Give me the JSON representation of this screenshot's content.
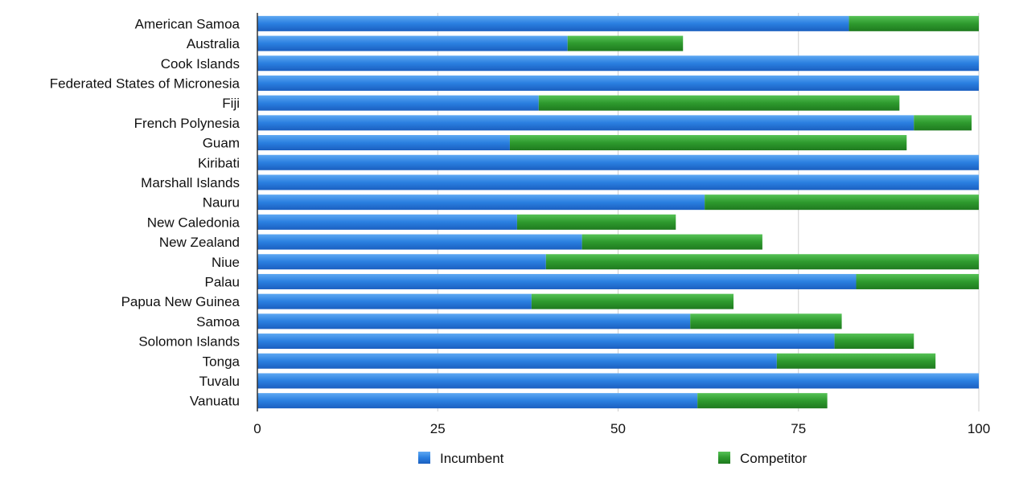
{
  "chart_data": {
    "type": "bar",
    "orientation": "horizontal",
    "stacked": true,
    "categories": [
      "American Samoa",
      "Australia",
      "Cook Islands",
      "Federated States of Micronesia",
      "Fiji",
      "French Polynesia",
      "Guam",
      "Kiribati",
      "Marshall Islands",
      "Nauru",
      "New Caledonia",
      "New Zealand",
      "Niue",
      "Palau",
      "Papua New Guinea",
      "Samoa",
      "Solomon Islands",
      "Tonga",
      "Tuvalu",
      "Vanuatu"
    ],
    "series": [
      {
        "name": "Incumbent",
        "color": "#2a78d8",
        "values": [
          82,
          43,
          100,
          100,
          39,
          91,
          35,
          100,
          100,
          62,
          36,
          45,
          40,
          83,
          38,
          60,
          80,
          72,
          100,
          61
        ]
      },
      {
        "name": "Competitor",
        "color": "#2e9a2e",
        "values": [
          18,
          16,
          0,
          0,
          50,
          8,
          55,
          0,
          0,
          38,
          22,
          25,
          60,
          17,
          28,
          21,
          11,
          22,
          0,
          18
        ]
      }
    ],
    "x_ticks": [
      "0",
      "25",
      "50",
      "75",
      "100"
    ],
    "xlim": [
      0,
      100
    ],
    "grid": true,
    "legend_position": "bottom"
  }
}
